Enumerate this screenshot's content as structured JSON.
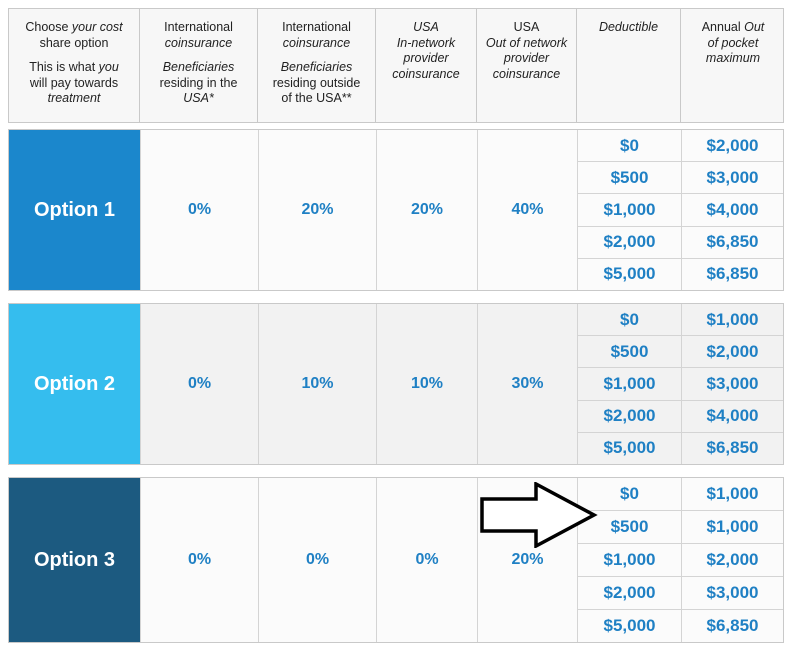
{
  "header": {
    "col0": {
      "line1_a": "Choose ",
      "line1_b": "your cost",
      "line2": "share option",
      "line3_a": "This is what ",
      "line3_b": "you",
      "line4": "will pay towards",
      "line5": "treatment"
    },
    "col1": {
      "line1": "International",
      "line2": "coinsurance",
      "line3": "Beneficiaries",
      "line4": "residing in the",
      "line5": "USA*"
    },
    "col2": {
      "line1": "International",
      "line2": "coinsurance",
      "line3": "Beneficiaries",
      "line4": "residing outside",
      "line5": "of the USA**"
    },
    "col3": {
      "line1": "USA",
      "line2": "In-network",
      "line3": "provider",
      "line4": "coinsurance"
    },
    "col4": {
      "line1": "USA",
      "line2": "Out of network",
      "line3": "provider",
      "line4": "coinsurance"
    },
    "col5": {
      "line1": "Deductible"
    },
    "col6": {
      "line1_a": "Annual ",
      "line1_b": "Out",
      "line2": "of pocket",
      "line3": "maximum"
    }
  },
  "options": [
    {
      "label": "Option 1",
      "intl_usa": "0%",
      "intl_outside": "20%",
      "usa_in": "20%",
      "usa_out": "40%",
      "deductibles": [
        "$0",
        "$500",
        "$1,000",
        "$2,000",
        "$5,000"
      ],
      "oop_max": [
        "$2,000",
        "$3,000",
        "$4,000",
        "$6,850",
        "$6,850"
      ]
    },
    {
      "label": "Option 2",
      "intl_usa": "0%",
      "intl_outside": "10%",
      "usa_in": "10%",
      "usa_out": "30%",
      "deductibles": [
        "$0",
        "$500",
        "$1,000",
        "$2,000",
        "$5,000"
      ],
      "oop_max": [
        "$1,000",
        "$2,000",
        "$3,000",
        "$4,000",
        "$6,850"
      ]
    },
    {
      "label": "Option 3",
      "intl_usa": "0%",
      "intl_outside": "0%",
      "usa_in": "0%",
      "usa_out": "20%",
      "deductibles": [
        "$0",
        "$500",
        "$1,000",
        "$2,000",
        "$5,000"
      ],
      "oop_max": [
        "$1,000",
        "$1,000",
        "$2,000",
        "$3,000",
        "$6,850"
      ]
    }
  ],
  "colors": {
    "option1": "#1b87cc",
    "option2": "#35bdee",
    "option3": "#1c5a80",
    "value_text": "#1f80c4"
  },
  "annotation": {
    "icon": "right-arrow-icon"
  }
}
